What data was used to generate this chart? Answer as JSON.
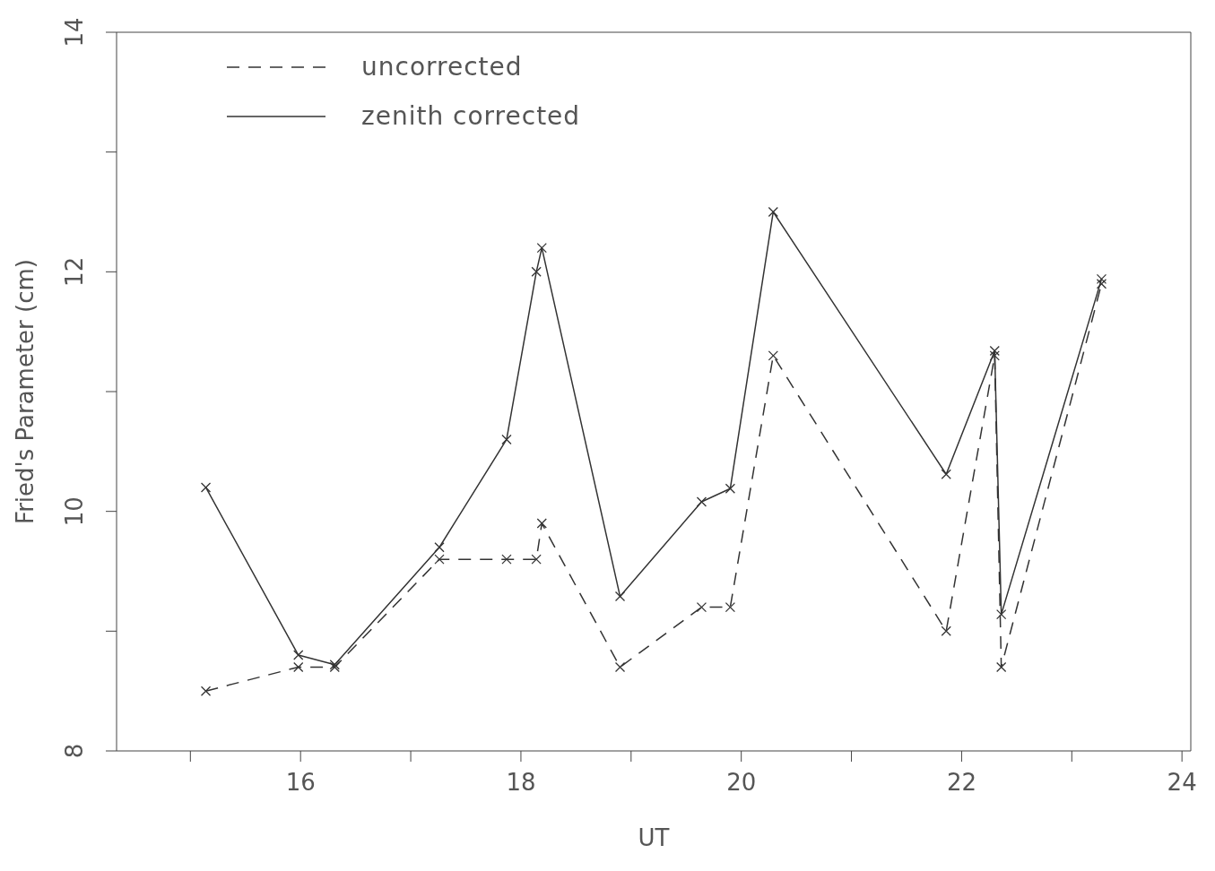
{
  "chart_data": {
    "type": "line",
    "xlabel": "UT",
    "ylabel": "Fried's Parameter (cm)",
    "xlim": [
      14.33,
      24.08
    ],
    "ylim": [
      8,
      14
    ],
    "xticks": [
      {
        "value": 15,
        "label": null
      },
      16,
      {
        "value": 17,
        "label": null
      },
      18,
      {
        "value": 19,
        "label": null
      },
      20,
      {
        "value": 21,
        "label": null
      },
      22,
      {
        "value": 23,
        "label": null
      },
      24
    ],
    "yticks": [
      8,
      {
        "value": 9,
        "label": null
      },
      10,
      {
        "value": 11,
        "label": null
      },
      12,
      {
        "value": 13,
        "label": null
      },
      14
    ],
    "grid": false,
    "legend": "top left",
    "marker": "cross",
    "series": [
      {
        "name": "uncorrected",
        "color": "#333333",
        "line_style": "dashed",
        "x": [
          15.14,
          15.98,
          16.31,
          17.26,
          17.87,
          18.14,
          18.19,
          18.9,
          19.64,
          19.9,
          20.29,
          21.86,
          22.3,
          22.36,
          23.27
        ],
        "values": [
          8.5,
          8.7,
          8.7,
          9.6,
          9.6,
          9.6,
          9.9,
          8.7,
          9.2,
          9.2,
          11.3,
          9.0,
          11.3,
          8.7,
          11.9
        ]
      },
      {
        "name": "zenith corrected",
        "color": "#333333",
        "line_style": "solid",
        "x": [
          15.14,
          15.98,
          16.31,
          17.26,
          17.87,
          18.14,
          18.19,
          18.9,
          19.64,
          19.9,
          20.29,
          21.86,
          22.3,
          22.36,
          23.27
        ],
        "values": [
          10.2,
          8.8,
          8.72,
          9.7,
          10.6,
          12.0,
          12.2,
          9.29,
          10.08,
          10.19,
          12.5,
          10.31,
          11.34,
          9.14,
          11.94
        ]
      }
    ]
  }
}
